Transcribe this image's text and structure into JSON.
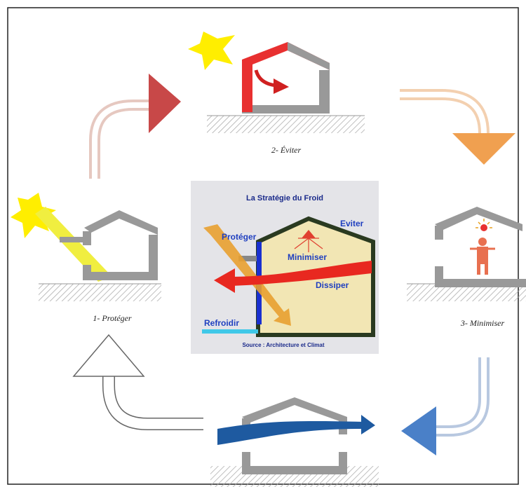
{
  "steps": [
    {
      "label": "1- Protéger"
    },
    {
      "label": "2- Éviter"
    },
    {
      "label": "3- Minimiser"
    }
  ],
  "center": {
    "title": "La Stratégie du Froid",
    "labels": [
      "Protéger",
      "Eviter",
      "Minimiser",
      "Dissiper",
      "Refroidir"
    ],
    "source": "Source : Architecture et Climat"
  }
}
